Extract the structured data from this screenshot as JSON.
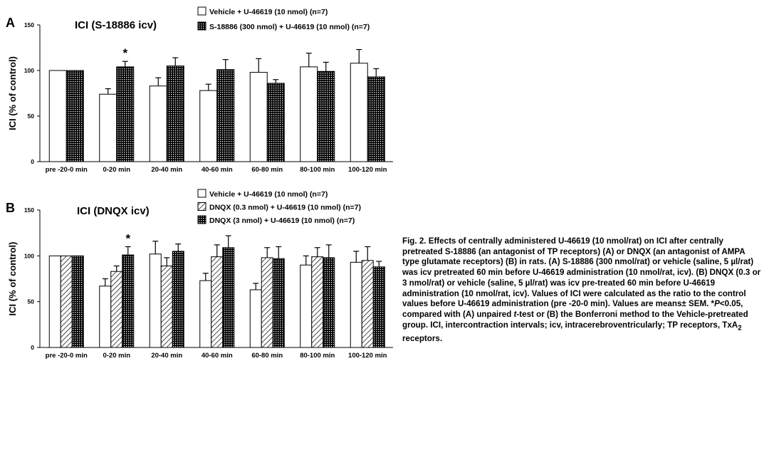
{
  "colors": {
    "ink": "#000000",
    "paper": "#ffffff"
  },
  "chart_data": [
    {
      "panel_label": "A",
      "type": "bar",
      "title": "ICI (S-18886 icv)",
      "ylabel": "ICI (% of control)",
      "xlabel": "",
      "ylim": [
        0,
        150
      ],
      "yticks": [
        "0",
        "50",
        "100",
        "150"
      ],
      "categories": [
        "pre -20-0 min",
        "0-20 min",
        "20-40 min",
        "40-60 min",
        "60-80 min",
        "80-100 min",
        "100-120 min"
      ],
      "legend_placement": "top",
      "series": [
        {
          "name": "Vehicle + U-46619 (10 nmol) (n=7)",
          "pattern": "white",
          "values": [
            100,
            74,
            83,
            78,
            98,
            104,
            108
          ],
          "sem": [
            0,
            6,
            9,
            7,
            15,
            15,
            15
          ]
        },
        {
          "name": "S-18886 (300 nmol) + U-46619 (10 nmol) (n=7)",
          "pattern": "dense-dots",
          "values": [
            100,
            104,
            105,
            101,
            86,
            99,
            93
          ],
          "sem": [
            0,
            6,
            9,
            11,
            4,
            10,
            9
          ]
        }
      ],
      "annotations": [
        {
          "text": "*",
          "category": "0-20 min"
        }
      ]
    },
    {
      "panel_label": "B",
      "type": "bar",
      "title": "ICI (DNQX icv)",
      "ylabel": "ICI (% of control)",
      "xlabel": "",
      "ylim": [
        0,
        150
      ],
      "yticks": [
        "0",
        "50",
        "100",
        "150"
      ],
      "categories": [
        "pre -20-0 min",
        "0-20 min",
        "20-40 min",
        "40-60 min",
        "60-80 min",
        "80-100 min",
        "100-120 min"
      ],
      "legend_placement": "top",
      "series": [
        {
          "name": "Vehicle + U-46619 (10 nmol) (n=7)",
          "pattern": "white",
          "values": [
            100,
            67,
            102,
            73,
            63,
            90,
            93
          ],
          "sem": [
            0,
            8,
            14,
            8,
            7,
            10,
            12
          ]
        },
        {
          "name": "DNQX (0.3 nmol) + U-46619 (10 nmol) (n=7)",
          "pattern": "hatch",
          "values": [
            100,
            83,
            89,
            99,
            98,
            99,
            95
          ],
          "sem": [
            0,
            6,
            9,
            13,
            11,
            10,
            15
          ]
        },
        {
          "name": "DNQX (3 nmol) + U-46619 (10 nmol) (n=7)",
          "pattern": "dense-dots",
          "values": [
            100,
            101,
            105,
            109,
            97,
            98,
            88
          ],
          "sem": [
            0,
            9,
            8,
            13,
            13,
            14,
            6
          ]
        }
      ],
      "annotations": [
        {
          "text": "*",
          "category": "0-20 min"
        }
      ]
    }
  ],
  "caption": {
    "p1": "Fig. 2. Effects of centrally administered U-46619 (10 nmol/rat) on ICI after centrally pretreated S-18886 (an antagonist of TP receptors) (A) or DNQX (an antagonist of AMPA type glutamate receptors) (B) in rats. (A) S-18886 (300 nmol/rat) or vehicle (saline, 5 µl/rat) was icv pretreated 60 min before U-46619 administration (10 nmol/rat, icv). (B) DNQX (0.3 or 3 nmol/rat) or vehicle (saline, 5 µl/rat) was icv pre-treated 60 min before U-46619 administration (10 nmol/rat, icv). Values of ICI were calculated as the ratio to the control values before U-46619 administration (pre -20-0 min). Values are means± SEM. *",
    "p_italic": "P",
    "p2": "<0.05, compared with (A) unpaired ",
    "t_italic": "t",
    "p3": "-test or (B) the Bonferroni method to the Vehicle-pretreated group. ICI, intercontraction intervals; icv, intracerebroventricularly; TP receptors, TxA",
    "sub": "2",
    "p4": " receptors."
  }
}
